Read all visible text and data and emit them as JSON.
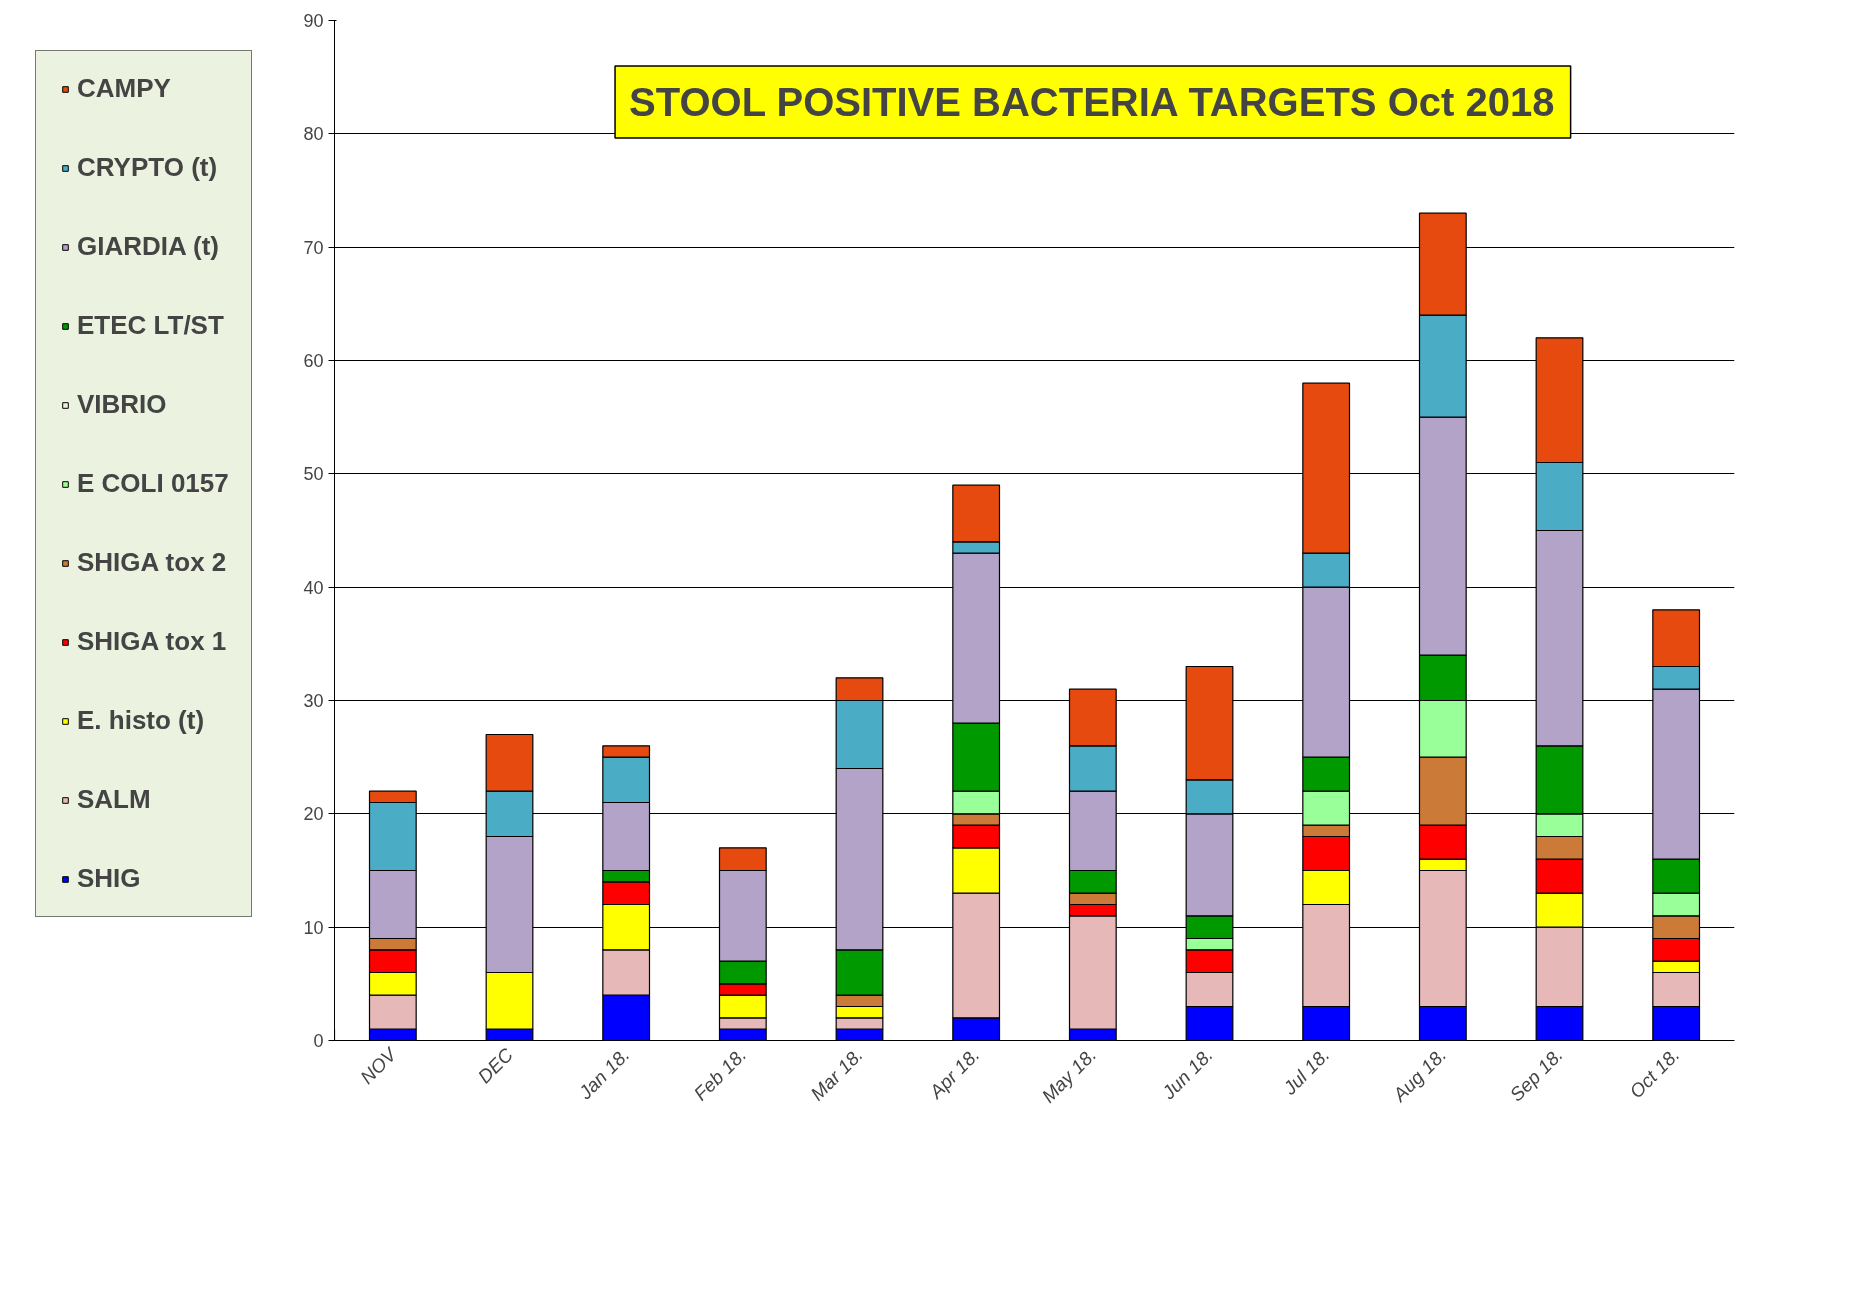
{
  "chart_data": {
    "type": "bar",
    "stacked": true,
    "title": "STOOL POSITIVE BACTERIA TARGETS Oct 2018",
    "categories": [
      "NOV",
      "DEC",
      "Jan 18.",
      "Feb 18.",
      "Mar 18.",
      "Apr 18.",
      "May 18.",
      "Jun 18.",
      "Jul 18.",
      "Aug 18.",
      "Sep 18.",
      "Oct 18."
    ],
    "series": [
      {
        "name": "SHIG",
        "color": "#0000ff",
        "values": [
          1,
          1,
          4,
          1,
          1,
          2,
          1,
          3,
          3,
          3,
          3,
          3
        ]
      },
      {
        "name": "SALM",
        "color": "#e6b8b7",
        "values": [
          3,
          0,
          4,
          1,
          1,
          11,
          10,
          3,
          9,
          12,
          7,
          3
        ]
      },
      {
        "name": "E. histo (t)",
        "color": "#ffff00",
        "values": [
          2,
          5,
          4,
          2,
          1,
          4,
          0,
          0,
          3,
          1,
          3,
          1
        ]
      },
      {
        "name": "SHIGA tox 1",
        "color": "#ff0000",
        "values": [
          2,
          0,
          2,
          1,
          0,
          2,
          1,
          2,
          3,
          3,
          3,
          2
        ]
      },
      {
        "name": "SHIGA tox 2",
        "color": "#cc7a38",
        "values": [
          1,
          0,
          0,
          0,
          1,
          1,
          1,
          0,
          1,
          6,
          2,
          2
        ]
      },
      {
        "name": "E COLI 0157",
        "color": "#99ff99",
        "values": [
          0,
          0,
          0,
          0,
          0,
          2,
          0,
          1,
          3,
          5,
          2,
          2
        ]
      },
      {
        "name": "VIBRIO",
        "color": "#f2ebe1",
        "values": [
          0,
          0,
          0,
          0,
          0,
          0,
          0,
          0,
          0,
          0,
          0,
          0
        ]
      },
      {
        "name": "ETEC LT/ST",
        "color": "#009900",
        "values": [
          0,
          0,
          1,
          2,
          4,
          6,
          2,
          2,
          3,
          4,
          6,
          3
        ]
      },
      {
        "name": "GIARDIA (t)",
        "color": "#b3a3c8",
        "values": [
          6,
          12,
          6,
          8,
          16,
          15,
          7,
          9,
          15,
          21,
          19,
          15
        ]
      },
      {
        "name": "CRYPTO (t)",
        "color": "#4bacc6",
        "values": [
          6,
          4,
          4,
          0,
          6,
          1,
          4,
          3,
          3,
          9,
          6,
          2
        ]
      },
      {
        "name": "CAMPY",
        "color": "#e64a0e",
        "values": [
          1,
          5,
          1,
          2,
          2,
          5,
          5,
          10,
          15,
          9,
          11,
          5
        ]
      }
    ],
    "ylim": [
      0,
      90
    ],
    "yticks": [
      0,
      10,
      20,
      30,
      40,
      50,
      60,
      70,
      80,
      90
    ],
    "grid": "y",
    "legend": "left"
  }
}
